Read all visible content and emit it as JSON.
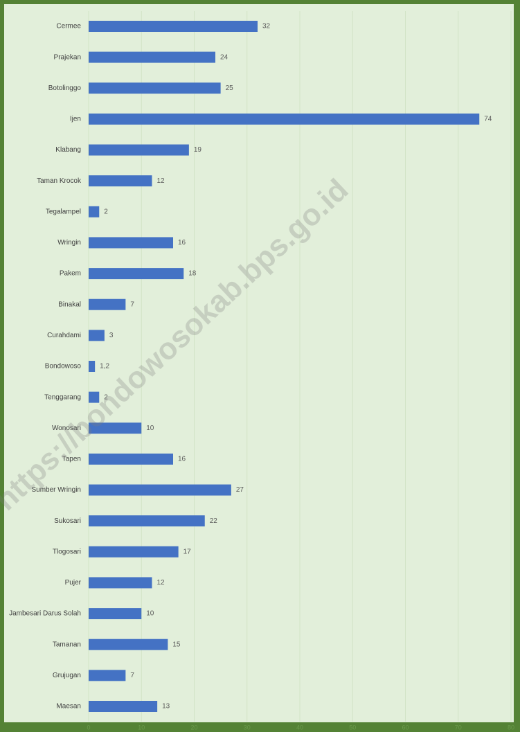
{
  "chart_data": {
    "type": "barh",
    "categories": [
      "Cermee",
      "Prajekan",
      "Botolinggo",
      "Ijen",
      "Klabang",
      "Taman Krocok",
      "Tegalampel",
      "Wringin",
      "Pakem",
      "Binakal",
      "Curahdami",
      "Bondowoso",
      "Tenggarang",
      "Wonosari",
      "Tapen",
      "Sumber Wringin",
      "Sukosari",
      "Tlogosari",
      "Pujer",
      "Jambesari Darus Solah",
      "Tamanan",
      "Grujugan",
      "Maesan"
    ],
    "values": [
      32,
      24,
      25,
      74,
      19,
      12,
      2,
      16,
      18,
      7,
      3,
      1.2,
      2,
      10,
      16,
      27,
      22,
      17,
      12,
      10,
      15,
      7,
      13
    ],
    "value_labels": [
      "32",
      "24",
      "25",
      "74",
      "19",
      "12",
      "2",
      "16",
      "18",
      "7",
      "3",
      "1,2",
      "2",
      "10",
      "16",
      "27",
      "22",
      "17",
      "12",
      "10",
      "15",
      "7",
      "13"
    ],
    "color": "#4472c4",
    "xlim": [
      0,
      80
    ],
    "xticks": [
      0,
      10,
      20,
      30,
      40,
      50,
      60,
      70,
      80
    ],
    "grid": true,
    "watermark": "https://bondowosokab.bps.go.id"
  }
}
